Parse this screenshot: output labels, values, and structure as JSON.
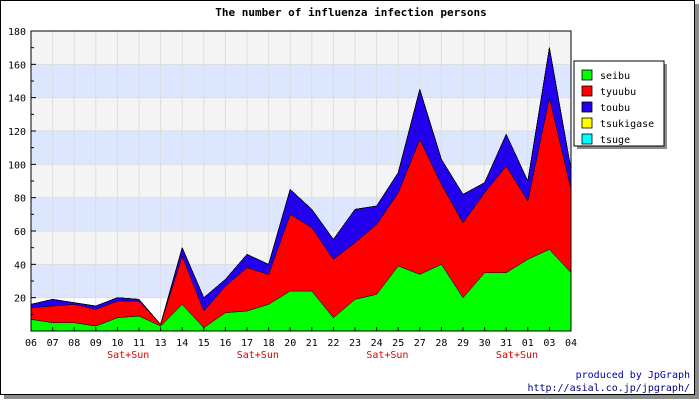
{
  "chart_data": {
    "type": "area",
    "stacked": true,
    "title": "The number of influenza infection persons",
    "xlabel": "",
    "ylabel": "",
    "ylim": [
      0,
      180
    ],
    "yticks": [
      20,
      40,
      60,
      80,
      100,
      120,
      140,
      160,
      180
    ],
    "grid": true,
    "legend_position": "right",
    "categories": [
      "06",
      "07",
      "08",
      "09",
      "10",
      "11",
      "13",
      "14",
      "15",
      "16",
      "17",
      "18",
      "20",
      "21",
      "22",
      "23",
      "24",
      "25",
      "27",
      "28",
      "29",
      "30",
      "31",
      "01",
      "03",
      "04"
    ],
    "weekend_marker": {
      "label": "Sat+Sun",
      "after_categories": [
        "10",
        "17",
        "24",
        "31"
      ]
    },
    "series": [
      {
        "name": "seibu",
        "color": "#00ff00",
        "values": [
          7,
          5,
          5,
          3,
          8,
          9,
          3,
          16,
          2,
          11,
          12,
          16,
          24,
          24,
          8,
          19,
          22,
          39,
          34,
          40,
          20,
          35,
          35,
          43,
          49,
          35
        ]
      },
      {
        "name": "tyuubu",
        "color": "#ff0000",
        "values": [
          7,
          10,
          11,
          10,
          10,
          9,
          1,
          29,
          10,
          16,
          26,
          18,
          46,
          38,
          35,
          34,
          42,
          44,
          81,
          48,
          45,
          48,
          64,
          35,
          91,
          50
        ]
      },
      {
        "name": "toubu",
        "color": "#2200ee",
        "values": [
          2,
          4,
          1,
          2,
          2,
          1,
          0,
          5,
          8,
          4,
          8,
          6,
          15,
          11,
          12,
          20,
          11,
          12,
          30,
          15,
          17,
          6,
          19,
          12,
          30,
          12
        ]
      },
      {
        "name": "tsukigase",
        "color": "#ffff00",
        "values": [
          0,
          0,
          0,
          0,
          0,
          0,
          0,
          0,
          0,
          0,
          0,
          0,
          0,
          0,
          0,
          0,
          0,
          0,
          0,
          0,
          0,
          0,
          0,
          0,
          0,
          0
        ]
      },
      {
        "name": "tsuge",
        "color": "#00ffff",
        "values": [
          0,
          0,
          0,
          0,
          0,
          0,
          0,
          0,
          0,
          0,
          0,
          0,
          0,
          0,
          0,
          0,
          0,
          0,
          0,
          0,
          0,
          0,
          0,
          0,
          0,
          0
        ]
      }
    ]
  },
  "footer": {
    "credit": "produced by JpGraph",
    "url": "http://asial.co.jp/jpgraph/"
  }
}
